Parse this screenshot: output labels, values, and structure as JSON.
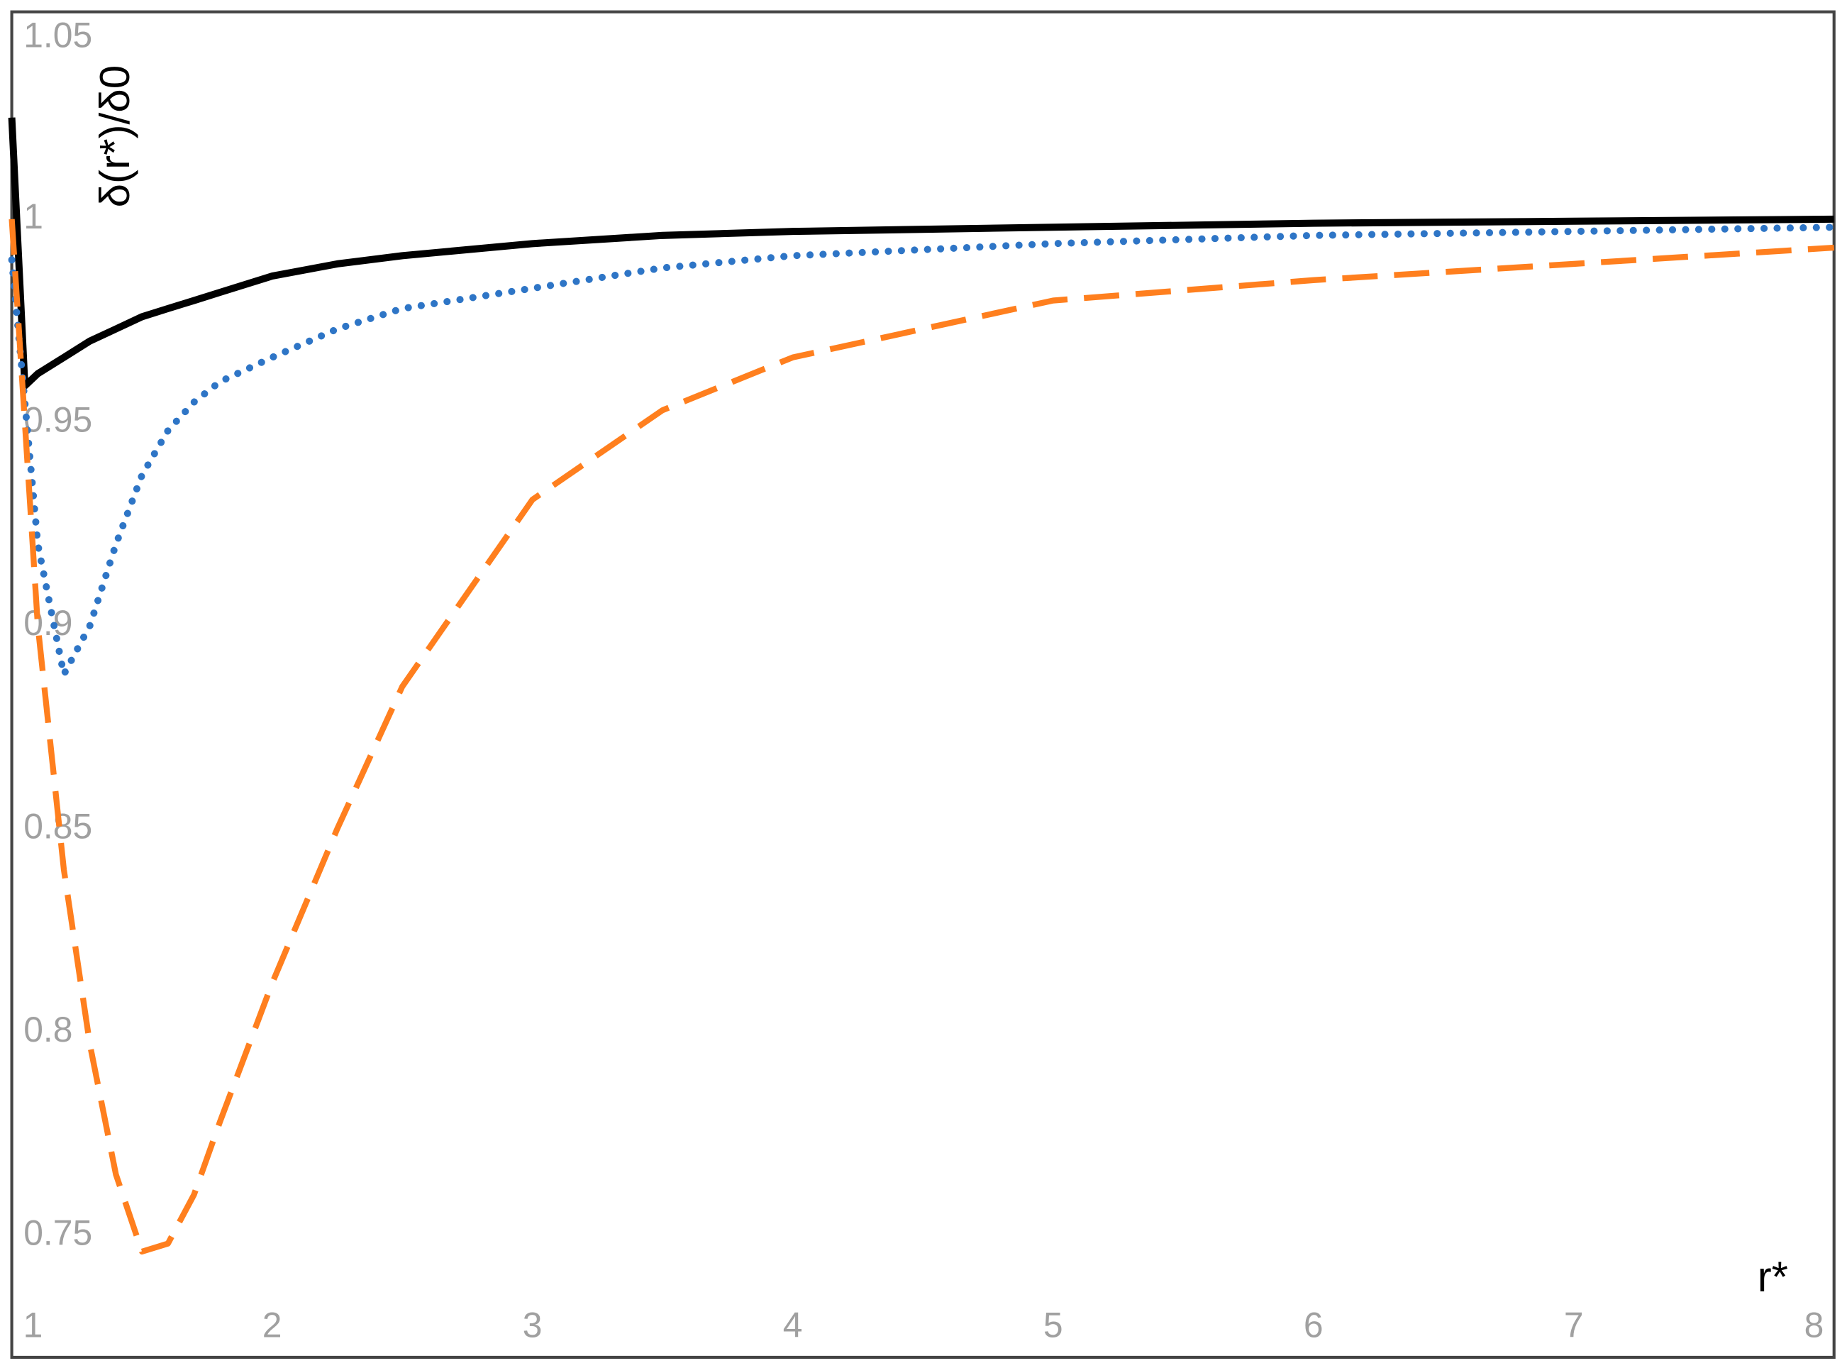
{
  "chart_data": {
    "type": "line",
    "x_label": "r*",
    "y_label": "δ(r*)/δ0",
    "x": [
      1,
      1.05,
      1.1,
      1.2,
      1.3,
      1.4,
      1.5,
      1.6,
      1.7,
      1.8,
      2,
      2.25,
      2.5,
      3,
      3.5,
      4,
      5,
      6,
      7,
      8
    ],
    "series": [
      {
        "color": "#000000",
        "style": "solid",
        "values": [
          1.025,
          0.959,
          0.962,
          0.966,
          0.97,
          0.973,
          0.976,
          0.978,
          0.98,
          0.982,
          0.986,
          0.989,
          0.991,
          0.994,
          0.996,
          0.997,
          0.998,
          0.999,
          0.9995,
          1.0
        ]
      },
      {
        "color": "#2e75c6",
        "style": "dotted",
        "values": [
          0.99,
          0.955,
          0.92,
          0.888,
          0.9,
          0.92,
          0.937,
          0.948,
          0.955,
          0.96,
          0.966,
          0.973,
          0.978,
          0.983,
          0.988,
          0.991,
          0.994,
          0.996,
          0.997,
          0.998
        ]
      },
      {
        "color": "#ff7f1e",
        "style": "dashed",
        "values": [
          1.0,
          0.95,
          0.9,
          0.84,
          0.797,
          0.765,
          0.746,
          0.748,
          0.76,
          0.778,
          0.812,
          0.85,
          0.885,
          0.931,
          0.953,
          0.966,
          0.98,
          0.985,
          0.989,
          0.993
        ]
      }
    ],
    "xlim": [
      1,
      8
    ],
    "xticks": [
      1,
      2,
      3,
      4,
      5,
      6,
      7,
      8
    ],
    "ylim": [
      0.72,
      1.051
    ],
    "yticks": [
      0.75,
      0.8,
      0.85,
      0.9,
      0.95,
      1,
      1.05
    ],
    "grid": false
  }
}
